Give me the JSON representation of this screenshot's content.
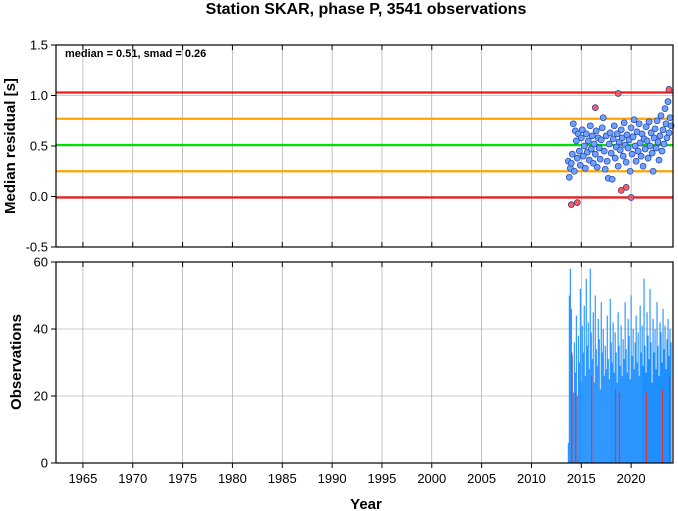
{
  "chart_data": [
    {
      "type": "scatter",
      "title": "Station SKAR, phase P, 3541 observations",
      "xlabel": "",
      "ylabel": "Median residual [s]",
      "annotation": "median = 0.51, smad = 0.26",
      "xlim": [
        1962.3,
        2024.2
      ],
      "ylim": [
        -0.5,
        1.5
      ],
      "x_ticks": [
        1965,
        1970,
        1975,
        1980,
        1985,
        1990,
        1995,
        2000,
        2005,
        2010,
        2015,
        2020
      ],
      "y_ticks": [
        "-0.5",
        "0.0",
        "0.5",
        "1.0",
        "1.5"
      ],
      "grid": true,
      "reference_lines": [
        {
          "y": 0.51,
          "color": "#00e000"
        },
        {
          "y": 0.25,
          "color": "#ffa500"
        },
        {
          "y": 0.77,
          "color": "#ffa500"
        },
        {
          "y": -0.01,
          "color": "#ee1c1c"
        },
        {
          "y": 1.03,
          "color": "#ee1c1c"
        }
      ],
      "colors": {
        "inlier": "#6ea0ff",
        "outlier": "#ff5a5a",
        "edge": "#2040a0"
      },
      "series": [
        {
          "category": "inlier",
          "points": [
            [
              2013.7,
              0.35
            ],
            [
              2013.8,
              0.19
            ],
            [
              2013.9,
              0.28
            ],
            [
              2014.0,
              0.33
            ],
            [
              2014.1,
              0.42
            ],
            [
              2014.2,
              0.72
            ],
            [
              2014.3,
              0.25
            ],
            [
              2014.4,
              0.65
            ],
            [
              2014.5,
              0.55
            ],
            [
              2014.6,
              0.38
            ],
            [
              2014.7,
              0.62
            ],
            [
              2014.8,
              0.45
            ],
            [
              2014.9,
              0.31
            ],
            [
              2015.0,
              0.58
            ],
            [
              2015.1,
              0.66
            ],
            [
              2015.2,
              0.4
            ],
            [
              2015.3,
              0.5
            ],
            [
              2015.4,
              0.28
            ],
            [
              2015.5,
              0.62
            ],
            [
              2015.6,
              0.44
            ],
            [
              2015.7,
              0.55
            ],
            [
              2015.8,
              0.36
            ],
            [
              2015.9,
              0.7
            ],
            [
              2016.0,
              0.47
            ],
            [
              2016.1,
              0.6
            ],
            [
              2016.2,
              0.33
            ],
            [
              2016.3,
              0.52
            ],
            [
              2016.4,
              0.42
            ],
            [
              2016.5,
              0.65
            ],
            [
              2016.6,
              0.29
            ],
            [
              2016.7,
              0.58
            ],
            [
              2016.8,
              0.48
            ],
            [
              2016.9,
              0.37
            ],
            [
              2017.0,
              0.56
            ],
            [
              2017.1,
              0.68
            ],
            [
              2017.2,
              0.78
            ],
            [
              2017.3,
              0.45
            ],
            [
              2017.4,
              0.27
            ],
            [
              2017.5,
              0.6
            ],
            [
              2017.6,
              0.35
            ],
            [
              2017.7,
              0.18
            ],
            [
              2017.8,
              0.52
            ],
            [
              2017.9,
              0.63
            ],
            [
              2018.0,
              0.43
            ],
            [
              2018.1,
              0.17
            ],
            [
              2018.2,
              0.57
            ],
            [
              2018.3,
              0.7
            ],
            [
              2018.4,
              0.38
            ],
            [
              2018.5,
              0.49
            ],
            [
              2018.6,
              0.62
            ],
            [
              2018.7,
              0.3
            ],
            [
              2018.8,
              0.54
            ],
            [
              2018.9,
              0.46
            ],
            [
              2019.0,
              0.66
            ],
            [
              2019.1,
              0.58
            ],
            [
              2019.2,
              0.4
            ],
            [
              2019.3,
              0.73
            ],
            [
              2019.4,
              0.51
            ],
            [
              2019.5,
              0.34
            ],
            [
              2019.6,
              0.61
            ],
            [
              2019.7,
              0.48
            ],
            [
              2019.8,
              0.56
            ],
            [
              2019.9,
              0.25
            ],
            [
              2020.0,
              0.68
            ],
            [
              2020.1,
              0.42
            ],
            [
              2020.2,
              0.59
            ],
            [
              2020.3,
              0.76
            ],
            [
              2020.4,
              0.5
            ],
            [
              2020.5,
              0.35
            ],
            [
              2020.6,
              0.64
            ],
            [
              2020.7,
              0.45
            ],
            [
              2020.8,
              0.72
            ],
            [
              2020.9,
              0.53
            ],
            [
              2021.0,
              0.4
            ],
            [
              2021.1,
              0.62
            ],
            [
              2021.2,
              0.3
            ],
            [
              2021.3,
              0.57
            ],
            [
              2021.4,
              0.47
            ],
            [
              2021.5,
              0.69
            ],
            [
              2021.6,
              0.55
            ],
            [
              2021.7,
              0.38
            ],
            [
              2021.8,
              0.74
            ],
            [
              2021.9,
              0.5
            ],
            [
              2022.0,
              0.63
            ],
            [
              2022.1,
              0.43
            ],
            [
              2022.2,
              0.25
            ],
            [
              2022.3,
              0.58
            ],
            [
              2022.4,
              0.67
            ],
            [
              2022.5,
              0.48
            ],
            [
              2022.6,
              0.75
            ],
            [
              2022.7,
              0.54
            ],
            [
              2022.8,
              0.36
            ],
            [
              2022.9,
              0.6
            ],
            [
              2023.0,
              0.8
            ],
            [
              2023.1,
              0.45
            ],
            [
              2023.2,
              0.66
            ],
            [
              2023.3,
              0.52
            ],
            [
              2023.4,
              0.87
            ],
            [
              2023.5,
              0.72
            ],
            [
              2023.6,
              0.58
            ],
            [
              2023.7,
              0.94
            ],
            [
              2023.8,
              0.63
            ],
            [
              2023.9,
              0.78
            ],
            [
              2024.0,
              0.7
            ]
          ]
        },
        {
          "category": "outlier",
          "points": [
            [
              2014.0,
              -0.08
            ],
            [
              2014.6,
              -0.06
            ],
            [
              2016.4,
              0.88
            ],
            [
              2018.7,
              1.02
            ],
            [
              2019.0,
              0.06
            ],
            [
              2019.5,
              0.09
            ],
            [
              2020.0,
              -0.01
            ],
            [
              2023.8,
              1.06
            ]
          ]
        }
      ]
    },
    {
      "type": "bar",
      "title": "",
      "xlabel": "Year",
      "ylabel": "Observations",
      "xlim": [
        1962.3,
        2024.2
      ],
      "ylim": [
        0,
        60
      ],
      "x_ticks": [
        1965,
        1970,
        1975,
        1980,
        1985,
        1990,
        1995,
        2000,
        2005,
        2010,
        2015,
        2020
      ],
      "y_ticks": [
        0,
        20,
        40,
        60
      ],
      "grid": true,
      "colors": {
        "bar": "#1e8fff",
        "highlight": "#e0343c"
      },
      "bars": [
        [
          2013.7,
          6
        ],
        [
          2013.8,
          50
        ],
        [
          2013.9,
          58
        ],
        [
          2014.0,
          46
        ],
        [
          2014.1,
          32
        ],
        [
          2014.2,
          21
        ],
        [
          2014.3,
          36
        ],
        [
          2014.4,
          27
        ],
        [
          2014.5,
          44
        ],
        [
          2014.6,
          20
        ],
        [
          2014.7,
          38
        ],
        [
          2014.8,
          30
        ],
        [
          2014.9,
          52
        ],
        [
          2015.0,
          24
        ],
        [
          2015.1,
          41
        ],
        [
          2015.2,
          33
        ],
        [
          2015.3,
          47
        ],
        [
          2015.4,
          26
        ],
        [
          2015.5,
          55
        ],
        [
          2015.6,
          35
        ],
        [
          2015.7,
          42
        ],
        [
          2015.8,
          28
        ],
        [
          2015.9,
          58
        ],
        [
          2016.0,
          39
        ],
        [
          2016.1,
          31
        ],
        [
          2016.2,
          45
        ],
        [
          2016.3,
          24
        ],
        [
          2016.4,
          50
        ],
        [
          2016.5,
          34
        ],
        [
          2016.6,
          29
        ],
        [
          2016.7,
          43
        ],
        [
          2016.8,
          37
        ],
        [
          2016.9,
          22
        ],
        [
          2017.0,
          48
        ],
        [
          2017.1,
          33
        ],
        [
          2017.2,
          40
        ],
        [
          2017.3,
          26
        ],
        [
          2017.4,
          35
        ],
        [
          2017.5,
          28
        ],
        [
          2017.6,
          44
        ],
        [
          2017.7,
          31
        ],
        [
          2017.8,
          25
        ],
        [
          2017.9,
          49
        ],
        [
          2018.0,
          36
        ],
        [
          2018.1,
          30
        ],
        [
          2018.2,
          42
        ],
        [
          2018.3,
          27
        ],
        [
          2018.4,
          39
        ],
        [
          2018.5,
          33
        ],
        [
          2018.6,
          24
        ],
        [
          2018.7,
          45
        ],
        [
          2018.8,
          35
        ],
        [
          2018.9,
          29
        ],
        [
          2019.0,
          41
        ],
        [
          2019.1,
          26
        ],
        [
          2019.2,
          37
        ],
        [
          2019.3,
          31
        ],
        [
          2019.4,
          48
        ],
        [
          2019.5,
          34
        ],
        [
          2019.6,
          27
        ],
        [
          2019.7,
          43
        ],
        [
          2019.8,
          38
        ],
        [
          2019.9,
          25
        ],
        [
          2020.0,
          50
        ],
        [
          2020.1,
          32
        ],
        [
          2020.2,
          40
        ],
        [
          2020.3,
          28
        ],
        [
          2020.4,
          36
        ],
        [
          2020.5,
          44
        ],
        [
          2020.6,
          30
        ],
        [
          2020.7,
          39
        ],
        [
          2020.8,
          26
        ],
        [
          2020.9,
          47
        ],
        [
          2021.0,
          33
        ],
        [
          2021.1,
          41
        ],
        [
          2021.2,
          29
        ],
        [
          2021.3,
          55
        ],
        [
          2021.4,
          35
        ],
        [
          2021.5,
          27
        ],
        [
          2021.6,
          45
        ],
        [
          2021.7,
          38
        ],
        [
          2021.8,
          31
        ],
        [
          2021.9,
          52
        ],
        [
          2022.0,
          36
        ],
        [
          2022.1,
          24
        ],
        [
          2022.2,
          43
        ],
        [
          2022.3,
          33
        ],
        [
          2022.4,
          40
        ],
        [
          2022.5,
          28
        ],
        [
          2022.6,
          48
        ],
        [
          2022.7,
          35
        ],
        [
          2022.8,
          26
        ],
        [
          2022.9,
          42
        ],
        [
          2023.0,
          39
        ],
        [
          2023.1,
          30
        ],
        [
          2023.2,
          46
        ],
        [
          2023.3,
          34
        ],
        [
          2023.4,
          41
        ],
        [
          2023.5,
          28
        ],
        [
          2023.6,
          37
        ],
        [
          2023.7,
          43
        ],
        [
          2023.8,
          32
        ],
        [
          2023.9,
          40
        ],
        [
          2024.0,
          36
        ]
      ],
      "highlight_bars": [
        [
          2014.05,
          33
        ],
        [
          2014.45,
          21
        ],
        [
          2016.05,
          26
        ],
        [
          2018.45,
          22
        ],
        [
          2018.85,
          21
        ],
        [
          2021.55,
          21
        ],
        [
          2023.15,
          22
        ],
        [
          2023.85,
          26
        ]
      ]
    }
  ]
}
